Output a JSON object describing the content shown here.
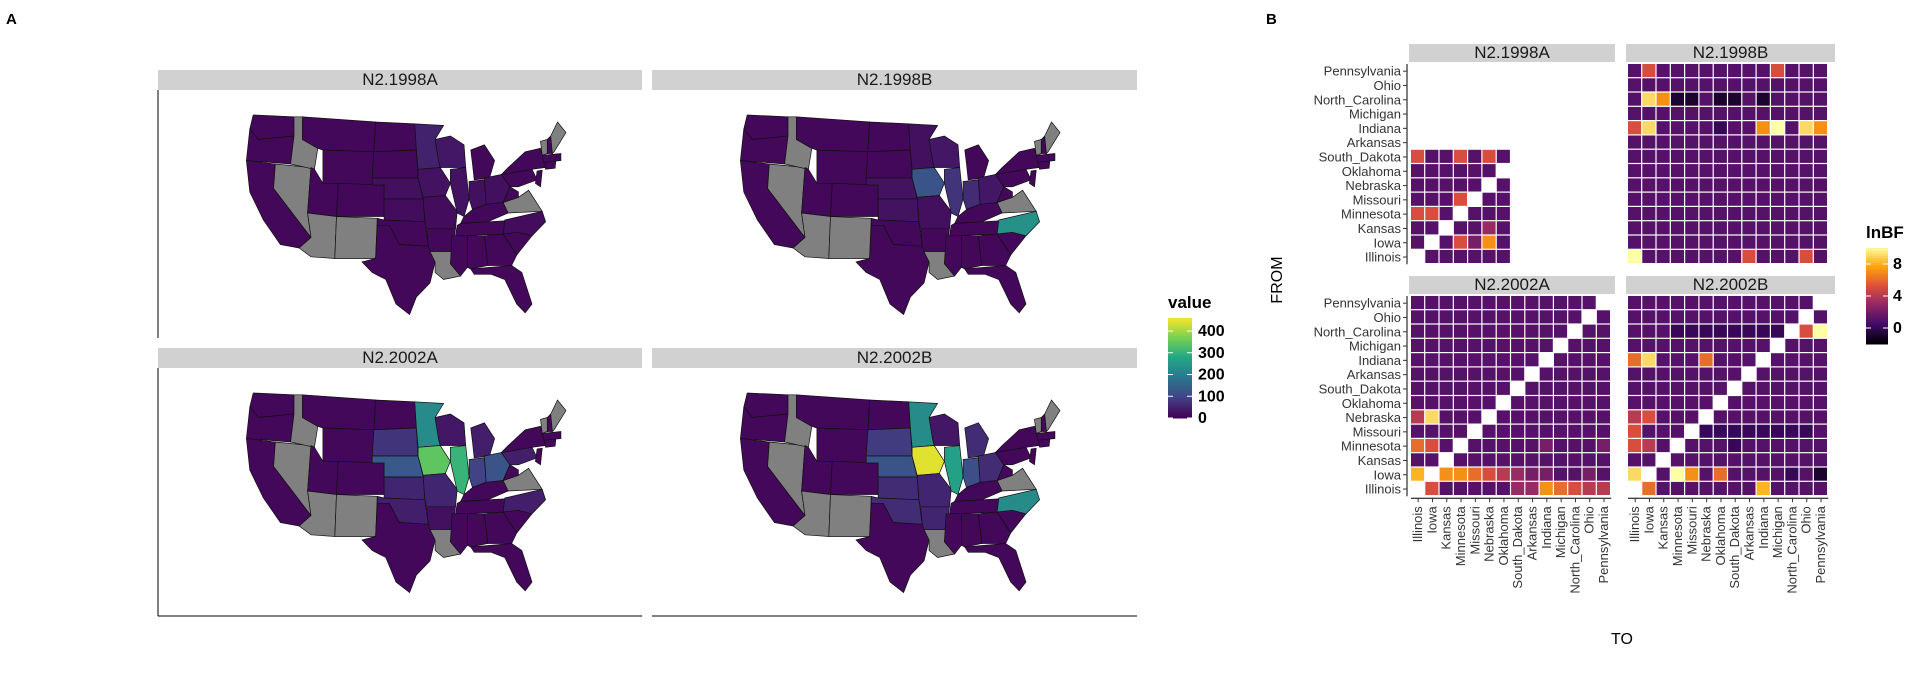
{
  "panel_letters": {
    "a": "A",
    "b": "B"
  },
  "colors": {
    "na_state": "#808080",
    "map_low": "#440154",
    "map_high": "#fde725",
    "heat_low": "#000004",
    "heat_high": "#fcffa4",
    "strip": "#d1d1d1"
  },
  "chart_data": [
    {
      "type": "map",
      "subtype": "choropleth",
      "region": "United States",
      "legend": {
        "title": "value",
        "ticks": [
          0,
          100,
          200,
          300,
          400
        ],
        "range": [
          0,
          460
        ]
      },
      "na_color": "#808080",
      "panels": [
        {
          "title": "N2.1998A",
          "values": {
            "Minnesota": 45,
            "Iowa": 25,
            "Illinois": 25,
            "Indiana": 20,
            "Ohio": 20,
            "Wisconsin": 30,
            "Nebraska": 20,
            "Kansas": 15,
            "Missouri": 15,
            "North_Carolina": 15
          },
          "gray_states": [
            "Nevada",
            "Arizona",
            "New_Mexico",
            "Idaho",
            "Maine",
            "Virginia",
            "Vermont",
            "Louisiana"
          ]
        },
        {
          "title": "N2.1998B",
          "values": {
            "Minnesota": 20,
            "Iowa": 120,
            "Illinois": 70,
            "Indiana": 60,
            "Ohio": 30,
            "North_Carolina": 230,
            "Wisconsin": 30,
            "Nebraska": 25,
            "Kansas": 25,
            "Missouri": 20
          },
          "gray_states": [
            "Nevada",
            "Arizona",
            "New_Mexico",
            "Idaho",
            "Maine",
            "Virginia",
            "Vermont",
            "Louisiana"
          ]
        },
        {
          "title": "N2.2002A",
          "values": {
            "Minnesota": 220,
            "Iowa": 340,
            "Illinois": 300,
            "Indiana": 90,
            "Ohio": 120,
            "Nebraska": 130,
            "Kansas": 50,
            "Missouri": 50,
            "South_Dakota": 70,
            "North_Carolina": 40,
            "Arkansas": 20,
            "Michigan": 40,
            "Pennsylvania": 40,
            "Oklahoma": 40,
            "Wisconsin": 30
          },
          "gray_states": [
            "Nevada",
            "Arizona",
            "New_Mexico",
            "Idaho",
            "Maine",
            "Virginia",
            "Vermont",
            "Louisiana"
          ]
        },
        {
          "title": "N2.2002B",
          "values": {
            "Minnesota": 220,
            "Iowa": 440,
            "Illinois": 260,
            "Indiana": 110,
            "Ohio": 60,
            "North_Carolina": 220,
            "Nebraska": 120,
            "Kansas": 60,
            "South_Dakota": 80,
            "Missouri": 50,
            "Oklahoma": 60,
            "Michigan": 60,
            "Arkansas": 50,
            "Wisconsin": 30
          },
          "gray_states": [
            "Nevada",
            "Arizona",
            "New_Mexico",
            "Idaho",
            "Maine",
            "Virginia",
            "Vermont",
            "Louisiana"
          ]
        }
      ]
    },
    {
      "type": "heatmap",
      "xlabel": "TO",
      "ylabel": "FROM",
      "legend": {
        "title": "lnBF",
        "ticks": [
          0,
          4,
          8
        ],
        "range": [
          -2,
          10
        ]
      },
      "y_categories": [
        "Illinois",
        "Iowa",
        "Kansas",
        "Minnesota",
        "Missouri",
        "Nebraska",
        "Oklahoma",
        "South_Dakota",
        "Arkansas",
        "Indiana",
        "Michigan",
        "North_Carolina",
        "Ohio",
        "Pennsylvania"
      ],
      "panels": [
        {
          "title": "N2.1998A",
          "x_categories": [],
          "rows": {
            "Illinois": [
              null,
              1,
              1,
              1,
              1,
              1,
              1
            ],
            "Iowa": [
              1,
              null,
              1,
              5,
              2,
              7,
              1
            ],
            "Kansas": [
              1,
              1,
              null,
              1,
              1,
              3,
              1
            ],
            "Minnesota": [
              5,
              5,
              1,
              null,
              1,
              1,
              1
            ],
            "Missouri": [
              1,
              1,
              1,
              5,
              null,
              1,
              1
            ],
            "Nebraska": [
              1,
              1,
              1,
              1,
              1,
              null,
              1
            ],
            "Oklahoma": [
              1,
              1,
              1,
              1,
              1,
              1,
              null
            ],
            "South_Dakota": [
              5,
              1,
              1,
              5,
              1,
              5,
              1
            ]
          }
        },
        {
          "title": "N2.1998B",
          "x_categories": [],
          "rows": {
            "Illinois": [
              10,
              1,
              1,
              1,
              1,
              1,
              1,
              1,
              5,
              1,
              1,
              1,
              5,
              1
            ],
            "Iowa": [
              1,
              1,
              1,
              1,
              1,
              1,
              1,
              1,
              1,
              1,
              1,
              1,
              1,
              1
            ],
            "Kansas": [
              1,
              1,
              1,
              1,
              1,
              1,
              1,
              1,
              1,
              1,
              1,
              1,
              1,
              1
            ],
            "Minnesota": [
              1,
              1,
              1,
              1,
              1,
              1,
              1,
              1,
              1,
              1,
              1,
              1,
              1,
              1
            ],
            "Missouri": [
              1,
              1,
              1,
              1,
              1,
              1,
              1,
              1,
              1,
              1,
              1,
              1,
              1,
              1
            ],
            "Nebraska": [
              1,
              1,
              1,
              1,
              1,
              1,
              1,
              1,
              1,
              1,
              1,
              1,
              1,
              1
            ],
            "Oklahoma": [
              1,
              1,
              1,
              1,
              1,
              1,
              1,
              1,
              1,
              1,
              1,
              1,
              1,
              1
            ],
            "South_Dakota": [
              1,
              1,
              1,
              1,
              1,
              1,
              1,
              1,
              1,
              1,
              1,
              1,
              1,
              1
            ],
            "Arkansas": [
              1,
              1,
              1,
              1,
              1,
              1,
              1,
              1,
              1,
              1,
              1,
              1,
              1,
              1
            ],
            "Indiana": [
              5,
              9,
              1,
              1,
              1,
              1,
              0,
              1,
              1,
              7,
              10,
              1,
              9,
              7
            ],
            "Michigan": [
              1,
              1,
              1,
              1,
              1,
              1,
              1,
              1,
              1,
              1,
              1,
              1,
              1,
              1
            ],
            "North_Carolina": [
              1,
              9,
              7,
              -1,
              -1,
              1,
              -1,
              -1,
              1,
              -1,
              1,
              1,
              1,
              1
            ],
            "Ohio": [
              1,
              1,
              1,
              1,
              1,
              1,
              1,
              1,
              1,
              1,
              1,
              1,
              1,
              1
            ],
            "Pennsylvania": [
              1,
              5,
              1,
              1,
              1,
              1,
              1,
              1,
              1,
              1,
              5,
              1,
              1,
              1
            ]
          }
        },
        {
          "title": "N2.2002A",
          "x_categories": [
            "Illinois",
            "Iowa",
            "Kansas",
            "Minnesota",
            "Missouri",
            "Nebraska",
            "Oklahoma",
            "South_Dakota",
            "Arkansas",
            "Indiana",
            "Michigan",
            "North_Carolina",
            "Ohio",
            "Pennsylvania"
          ],
          "rows": {
            "Illinois": [
              null,
              5,
              1,
              1,
              1,
              1,
              1,
              3,
              3,
              7,
              6,
              5,
              4,
              4
            ],
            "Iowa": [
              8,
              null,
              7,
              7,
              6,
              5,
              4,
              3,
              2,
              2,
              1,
              1,
              2,
              1
            ],
            "Kansas": [
              1,
              1,
              null,
              1,
              1,
              1,
              1,
              1,
              1,
              1,
              1,
              1,
              1,
              1
            ],
            "Minnesota": [
              6,
              5,
              1,
              null,
              1,
              1,
              1,
              1,
              1,
              2,
              1,
              1,
              1,
              2
            ],
            "Missouri": [
              1,
              1,
              1,
              1,
              null,
              1,
              1,
              1,
              1,
              1,
              1,
              1,
              1,
              1
            ],
            "Nebraska": [
              4,
              9,
              1,
              1,
              1,
              null,
              1,
              1,
              1,
              1,
              1,
              1,
              1,
              1
            ],
            "Oklahoma": [
              1,
              1,
              1,
              1,
              1,
              1,
              null,
              1,
              1,
              1,
              1,
              1,
              1,
              1
            ],
            "South_Dakota": [
              1,
              1,
              1,
              1,
              1,
              1,
              1,
              null,
              1,
              1,
              1,
              1,
              1,
              1
            ],
            "Arkansas": [
              1,
              1,
              1,
              1,
              1,
              1,
              1,
              1,
              null,
              1,
              1,
              1,
              1,
              1
            ],
            "Indiana": [
              1,
              1,
              1,
              1,
              1,
              1,
              1,
              1,
              1,
              null,
              1,
              1,
              1,
              1
            ],
            "Michigan": [
              1,
              1,
              1,
              1,
              1,
              1,
              1,
              1,
              1,
              1,
              null,
              1,
              1,
              1
            ],
            "North_Carolina": [
              1,
              1,
              1,
              1,
              1,
              1,
              1,
              1,
              1,
              1,
              1,
              null,
              1,
              1
            ],
            "Ohio": [
              1,
              1,
              1,
              1,
              1,
              1,
              1,
              1,
              1,
              1,
              1,
              1,
              null,
              1
            ],
            "Pennsylvania": [
              1,
              1,
              1,
              1,
              1,
              1,
              1,
              1,
              1,
              1,
              1,
              1,
              1,
              null
            ]
          }
        },
        {
          "title": "N2.2002B",
          "x_categories": [
            "Illinois",
            "Iowa",
            "Kansas",
            "Minnesota",
            "Missouri",
            "Nebraska",
            "Oklahoma",
            "South_Dakota",
            "Arkansas",
            "Indiana",
            "Michigan",
            "North_Carolina",
            "Ohio",
            "Pennsylvania"
          ],
          "rows": {
            "Illinois": [
              null,
              6,
              1,
              1,
              1,
              1,
              1,
              1,
              1,
              8,
              1,
              1,
              1,
              1
            ],
            "Iowa": [
              9,
              null,
              1,
              10,
              7,
              1,
              6,
              1,
              1,
              1,
              1,
              0,
              1,
              -1
            ],
            "Kansas": [
              1,
              1,
              null,
              1,
              1,
              1,
              1,
              1,
              1,
              1,
              1,
              1,
              1,
              1
            ],
            "Minnesota": [
              5,
              4,
              1,
              null,
              1,
              1,
              1,
              0,
              1,
              1,
              1,
              1,
              1,
              1
            ],
            "Missouri": [
              5,
              1,
              1,
              1,
              null,
              0,
              0,
              0,
              0,
              0,
              0,
              0,
              0,
              1
            ],
            "Nebraska": [
              4,
              5,
              1,
              1,
              1,
              null,
              1,
              1,
              1,
              1,
              1,
              1,
              1,
              1
            ],
            "Oklahoma": [
              1,
              1,
              1,
              1,
              1,
              1,
              null,
              1,
              1,
              1,
              1,
              1,
              1,
              1
            ],
            "South_Dakota": [
              1,
              1,
              1,
              1,
              1,
              1,
              1,
              null,
              1,
              1,
              1,
              1,
              1,
              1
            ],
            "Arkansas": [
              1,
              1,
              1,
              1,
              1,
              1,
              1,
              1,
              null,
              1,
              1,
              1,
              1,
              1
            ],
            "Indiana": [
              6,
              9,
              1,
              1,
              1,
              6,
              1,
              1,
              1,
              null,
              1,
              1,
              1,
              1
            ],
            "Michigan": [
              1,
              1,
              1,
              1,
              1,
              1,
              1,
              1,
              1,
              1,
              null,
              1,
              1,
              1
            ],
            "North_Carolina": [
              1,
              1,
              1,
              0,
              0,
              0,
              0,
              0,
              0,
              0,
              0,
              null,
              5,
              10
            ],
            "Ohio": [
              1,
              1,
              1,
              1,
              1,
              1,
              1,
              1,
              1,
              1,
              1,
              1,
              null,
              1
            ],
            "Pennsylvania": [
              1,
              1,
              1,
              1,
              1,
              1,
              1,
              1,
              1,
              1,
              1,
              1,
              1,
              null
            ]
          }
        }
      ]
    }
  ]
}
